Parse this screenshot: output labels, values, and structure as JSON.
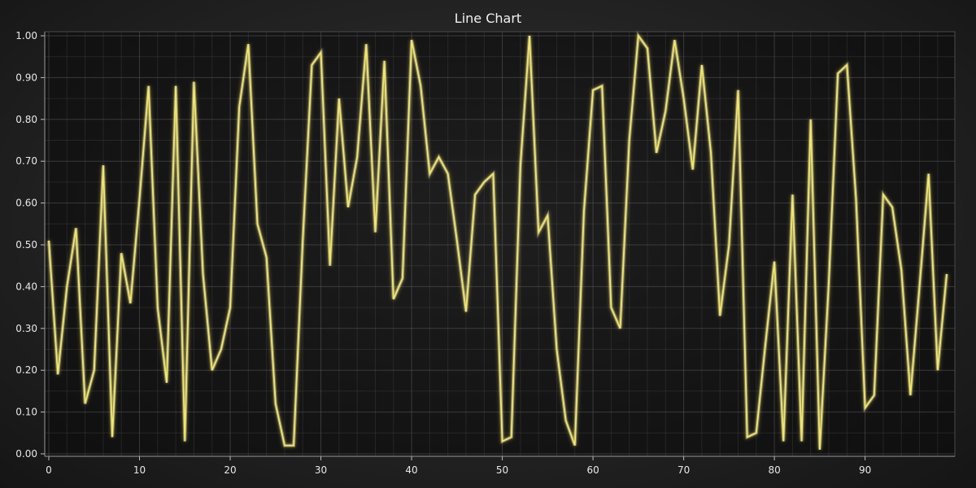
{
  "chart_data": {
    "type": "line",
    "title": "Line Chart",
    "xlabel": "",
    "ylabel": "",
    "xlim": [
      0,
      99
    ],
    "ylim": [
      0,
      1
    ],
    "x_ticks": [
      0,
      10,
      20,
      30,
      40,
      50,
      60,
      70,
      80,
      90
    ],
    "x_tick_labels": [
      "0",
      "10",
      "20",
      "30",
      "40",
      "50",
      "60",
      "70",
      "80",
      "90"
    ],
    "y_ticks": [
      0,
      0.1,
      0.2,
      0.3,
      0.4,
      0.5,
      0.6,
      0.7,
      0.8,
      0.9,
      1.0
    ],
    "y_tick_labels": [
      "0.00",
      "0.10",
      "0.20",
      "0.30",
      "0.40",
      "0.50",
      "0.60",
      "0.70",
      "0.80",
      "0.90",
      "1.00"
    ],
    "grid": true,
    "legend": "none",
    "colors": {
      "line": "#f2e66a",
      "glow": "#fff6a0"
    },
    "series": [
      {
        "x": [
          0,
          1,
          2,
          3,
          4,
          5,
          6,
          7,
          8,
          9,
          10,
          11,
          12,
          13,
          14,
          15,
          16,
          17,
          18,
          19,
          20,
          21,
          22,
          23,
          24,
          25,
          26,
          27,
          28,
          29,
          30,
          31,
          32,
          33,
          34,
          35,
          36,
          37,
          38,
          39,
          40,
          41,
          42,
          43,
          44,
          45,
          46,
          47,
          48,
          49,
          50,
          51,
          52,
          53,
          54,
          55,
          56,
          57,
          58,
          59,
          60,
          61,
          62,
          63,
          64,
          65,
          66,
          67,
          68,
          69,
          70,
          71,
          72,
          73,
          74,
          75,
          76,
          77,
          78,
          79,
          80,
          81,
          82,
          83,
          84,
          85,
          86,
          87,
          88,
          89,
          90,
          91,
          92,
          93,
          94,
          95,
          96,
          97,
          98,
          99
        ],
        "values": [
          0.51,
          0.19,
          0.4,
          0.54,
          0.12,
          0.2,
          0.69,
          0.04,
          0.48,
          0.36,
          0.61,
          0.88,
          0.35,
          0.17,
          0.88,
          0.03,
          0.89,
          0.43,
          0.2,
          0.25,
          0.35,
          0.83,
          0.98,
          0.55,
          0.47,
          0.12,
          0.02,
          0.02,
          0.51,
          0.93,
          0.96,
          0.45,
          0.85,
          0.59,
          0.71,
          0.98,
          0.53,
          0.94,
          0.37,
          0.42,
          0.99,
          0.88,
          0.67,
          0.71,
          0.67,
          0.51,
          0.34,
          0.62,
          0.65,
          0.67,
          0.03,
          0.04,
          0.69,
          1.0,
          0.53,
          0.57,
          0.25,
          0.08,
          0.02,
          0.58,
          0.87,
          0.88,
          0.35,
          0.3,
          0.75,
          1.0,
          0.97,
          0.72,
          0.82,
          0.99,
          0.85,
          0.68,
          0.93,
          0.72,
          0.33,
          0.5,
          0.87,
          0.04,
          0.05,
          0.26,
          0.46,
          0.03,
          0.62,
          0.03,
          0.8,
          0.01,
          0.41,
          0.91,
          0.93,
          0.61,
          0.11,
          0.14,
          0.62,
          0.59,
          0.44,
          0.14,
          0.4,
          0.67,
          0.2,
          0.43
        ]
      }
    ]
  }
}
